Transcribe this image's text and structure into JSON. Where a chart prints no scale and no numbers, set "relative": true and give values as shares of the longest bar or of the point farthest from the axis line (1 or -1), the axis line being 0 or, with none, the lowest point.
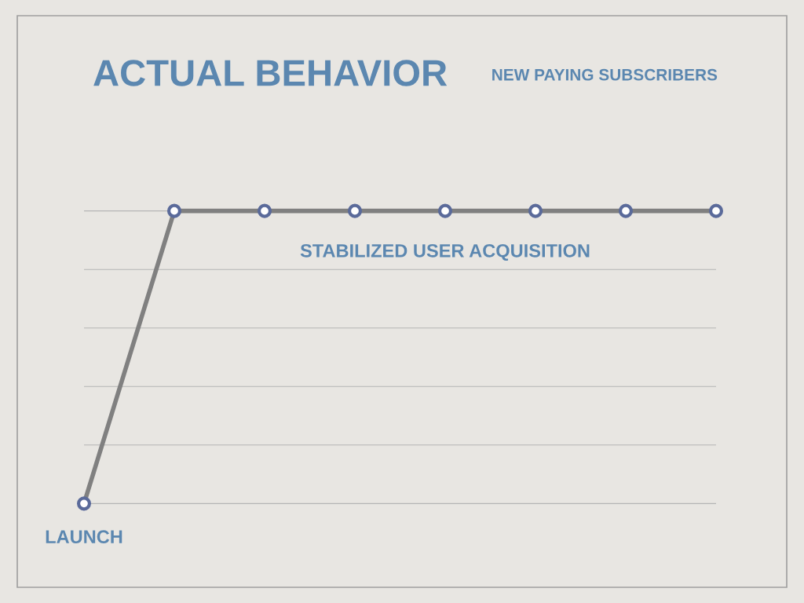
{
  "chart_data": {
    "type": "line",
    "title": "ACTUAL BEHAVIOR",
    "subtitle": "NEW PAYING SUBSCRIBERS",
    "relative": true,
    "categories": [
      null,
      null,
      null,
      null,
      null,
      null,
      null,
      null
    ],
    "series": [
      {
        "color": "#808080",
        "values": [
          0,
          1,
          1,
          1,
          1,
          1,
          1,
          1
        ]
      }
    ],
    "annotations": [
      "LAUNCH",
      "STABILIZED USER ACQUISITION"
    ],
    "marker": "circle",
    "line_style": "solid",
    "grid": "y",
    "legend": false
  }
}
